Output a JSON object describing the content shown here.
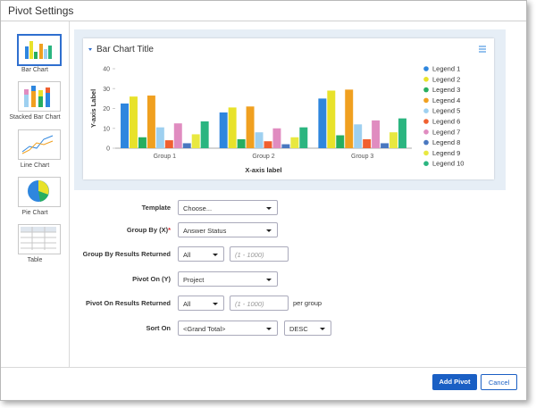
{
  "window": {
    "title": "Pivot Settings"
  },
  "sidebar": {
    "items": [
      {
        "label": "Bar Chart"
      },
      {
        "label": "Stacked Bar Chart"
      },
      {
        "label": "Line Chart"
      },
      {
        "label": "Pie Chart"
      },
      {
        "label": "Table"
      }
    ]
  },
  "preview": {
    "type": "bar",
    "title": "Bar Chart Title",
    "x_label": "X-axis label",
    "y_label": "Y-axis Label",
    "categories": [
      "Group 1",
      "Group 2",
      "Group 3"
    ],
    "ylim": [
      0,
      40
    ],
    "yticks": [
      0,
      10,
      20,
      30,
      40
    ],
    "grid": false,
    "series": [
      {
        "name": "Legend 1",
        "color": "#2e86de",
        "values": [
          22.5,
          18,
          25
        ]
      },
      {
        "name": "Legend 2",
        "color": "#e8e22a",
        "values": [
          26,
          20.5,
          29
        ]
      },
      {
        "name": "Legend 3",
        "color": "#27ae60",
        "values": [
          5.5,
          4.5,
          6.5
        ]
      },
      {
        "name": "Legend 4",
        "color": "#f0a020",
        "values": [
          26.5,
          21,
          29.5
        ]
      },
      {
        "name": "Legend 5",
        "color": "#9ed0f0",
        "values": [
          10.5,
          8,
          12
        ]
      },
      {
        "name": "Legend 6",
        "color": "#f06030",
        "values": [
          4,
          3.5,
          4.5
        ]
      },
      {
        "name": "Legend 7",
        "color": "#e08cc0",
        "values": [
          12.5,
          10,
          14
        ]
      },
      {
        "name": "Legend 8",
        "color": "#4a78c0",
        "values": [
          2.5,
          2,
          2.5
        ]
      },
      {
        "name": "Legend 9",
        "color": "#e8e840",
        "values": [
          7,
          5.5,
          8
        ]
      },
      {
        "name": "Legend 10",
        "color": "#2bb580",
        "values": [
          13.5,
          10.5,
          15
        ]
      }
    ]
  },
  "form": {
    "fields": [
      {
        "label": "Template",
        "value": "Choose..."
      },
      {
        "label": "Group By (X)",
        "required_mark": "*",
        "value": "Answer Status"
      },
      {
        "label": "Group By Results Returned",
        "value": "All",
        "placeholder": "(1 - 1000)"
      },
      {
        "label": "Pivot On (Y)",
        "value": "Project"
      },
      {
        "label": "Pivot On Results Returned",
        "value": "All",
        "placeholder": "(1 - 1000)",
        "suffix": "per group"
      },
      {
        "label": "Sort On",
        "value": "<Grand Total>",
        "order": "DESC"
      }
    ]
  },
  "buttons": {
    "primary": "Add Pivot",
    "secondary": "Cancel"
  }
}
